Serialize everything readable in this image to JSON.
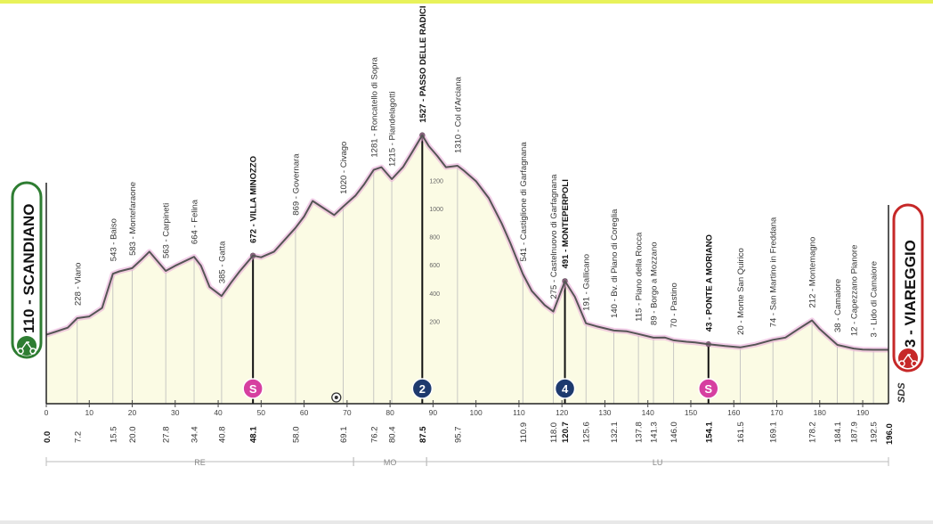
{
  "start": {
    "name": "110 - SCANDIANO",
    "altitude": 110,
    "km": 0.0,
    "km_label": "0.0"
  },
  "finish": {
    "name": "3 - VIAREGGIO",
    "altitude": 3,
    "km": 196.0,
    "km_label": "196.0"
  },
  "brand": "SDS",
  "colors": {
    "accent": "#2e7d32",
    "climb": "#d63fa0",
    "finish_tag": "#c62828",
    "profile_line": "#555555",
    "profile_fill": "#fbfbe4",
    "climb_badge": "#1e3a6e"
  },
  "chart_data": {
    "type": "area",
    "xlim": [
      0,
      196
    ],
    "ylim": [
      0,
      1600
    ],
    "x_ticks": [
      0,
      10,
      20,
      30,
      40,
      50,
      60,
      70,
      80,
      90,
      100,
      110,
      120,
      130,
      140,
      150,
      160,
      170,
      180,
      190
    ],
    "y_ticks": [
      200,
      400,
      600,
      800,
      1000,
      1200
    ],
    "profile": [
      [
        0,
        110
      ],
      [
        2,
        130
      ],
      [
        5,
        160
      ],
      [
        7.2,
        228
      ],
      [
        10,
        240
      ],
      [
        13,
        300
      ],
      [
        15.5,
        543
      ],
      [
        17,
        560
      ],
      [
        20,
        583
      ],
      [
        22,
        640
      ],
      [
        24,
        700
      ],
      [
        27.8,
        563
      ],
      [
        30,
        600
      ],
      [
        34.4,
        664
      ],
      [
        36,
        600
      ],
      [
        38,
        450
      ],
      [
        40.8,
        385
      ],
      [
        43,
        480
      ],
      [
        45,
        560
      ],
      [
        48.1,
        672
      ],
      [
        50,
        660
      ],
      [
        53,
        700
      ],
      [
        58,
        869
      ],
      [
        60,
        950
      ],
      [
        62,
        1060
      ],
      [
        65,
        1000
      ],
      [
        67,
        960
      ],
      [
        69.1,
        1020
      ],
      [
        72,
        1100
      ],
      [
        74,
        1180
      ],
      [
        76.2,
        1281
      ],
      [
        78,
        1300
      ],
      [
        80.4,
        1215
      ],
      [
        83,
        1300
      ],
      [
        85,
        1400
      ],
      [
        87.5,
        1527
      ],
      [
        89,
        1450
      ],
      [
        91,
        1380
      ],
      [
        93,
        1300
      ],
      [
        95.7,
        1310
      ],
      [
        97,
        1280
      ],
      [
        100,
        1200
      ],
      [
        103,
        1080
      ],
      [
        106,
        900
      ],
      [
        108,
        760
      ],
      [
        110.9,
        541
      ],
      [
        113,
        420
      ],
      [
        116,
        320
      ],
      [
        118,
        275
      ],
      [
        120.7,
        491
      ],
      [
        123,
        380
      ],
      [
        125.6,
        191
      ],
      [
        128,
        170
      ],
      [
        132.1,
        140
      ],
      [
        135,
        135
      ],
      [
        137.8,
        115
      ],
      [
        141.3,
        89
      ],
      [
        144,
        90
      ],
      [
        146,
        70
      ],
      [
        149,
        60
      ],
      [
        151,
        55
      ],
      [
        154.1,
        43
      ],
      [
        158,
        30
      ],
      [
        161.5,
        20
      ],
      [
        165,
        40
      ],
      [
        169.1,
        74
      ],
      [
        172,
        90
      ],
      [
        175,
        150
      ],
      [
        178.2,
        212
      ],
      [
        180,
        150
      ],
      [
        184.1,
        38
      ],
      [
        187.9,
        12
      ],
      [
        190,
        5
      ],
      [
        192.5,
        3
      ],
      [
        196,
        3
      ]
    ],
    "points": [
      {
        "km": 7.2,
        "km_label": "7.2",
        "label": "228 - Viano"
      },
      {
        "km": 15.5,
        "km_label": "15.5",
        "label": "543 - Baiso"
      },
      {
        "km": 20.0,
        "km_label": "20.0",
        "label": "583 - Montefaraone"
      },
      {
        "km": 27.8,
        "km_label": "27.8",
        "label": "563 - Carpineti"
      },
      {
        "km": 34.4,
        "km_label": "34.4",
        "label": "664 - Felina"
      },
      {
        "km": 40.8,
        "km_label": "40.8",
        "label": "385 - Gatta"
      },
      {
        "km": 48.1,
        "km_label": "48.1",
        "label": "672 - VILLA MINOZZO",
        "bold": true,
        "sprint": true
      },
      {
        "km": 58.0,
        "km_label": "58.0",
        "label": "869 - Governara"
      },
      {
        "km": 69.1,
        "km_label": "69.1",
        "label": "1020 - Civago"
      },
      {
        "km": 76.2,
        "km_label": "76.2",
        "label": "1281 - Roncatello di Sopra"
      },
      {
        "km": 80.4,
        "km_label": "80.4",
        "label": "1215 - Piandelagotti"
      },
      {
        "km": 87.5,
        "km_label": "87.5",
        "label": "1527 - PASSO DELLE RADICI",
        "bold": true,
        "climb": "2"
      },
      {
        "km": 95.7,
        "km_label": "95.7",
        "label": "1310 - Col d'Arciana"
      },
      {
        "km": 110.9,
        "km_label": "110.9",
        "label": "541 - Castiglione di Garfagnana"
      },
      {
        "km": 118.0,
        "km_label": "118.0",
        "label": "275 - Castelnuovo di Garfagnana"
      },
      {
        "km": 120.7,
        "km_label": "120.7",
        "label": "491 - MONTEPERPOLI",
        "bold": true,
        "climb": "4"
      },
      {
        "km": 125.6,
        "km_label": "125.6",
        "label": "191 - Gallicano"
      },
      {
        "km": 132.1,
        "km_label": "132.1",
        "label": "140 - Bv. di Piano di Coreglia"
      },
      {
        "km": 137.8,
        "km_label": "137.8",
        "label": "115 - Piano della Rocca"
      },
      {
        "km": 141.3,
        "km_label": "141.3",
        "label": "89 - Borgo a Mozzano"
      },
      {
        "km": 146.0,
        "km_label": "146.0",
        "label": "70 - Pastino"
      },
      {
        "km": 154.1,
        "km_label": "154.1",
        "label": "43 - PONTE A MORIANO",
        "bold": true,
        "sprint": true
      },
      {
        "km": 161.5,
        "km_label": "161.5",
        "label": "20 - Monte San Quirico"
      },
      {
        "km": 169.1,
        "km_label": "169.1",
        "label": "74 - San Martino in Freddana"
      },
      {
        "km": 178.2,
        "km_label": "178.2",
        "label": "212 - Montemagno"
      },
      {
        "km": 184.1,
        "km_label": "184.1",
        "label": "38 - Camaiore"
      },
      {
        "km": 187.9,
        "km_label": "187.9",
        "label": "12 - Capezzano Pianore"
      },
      {
        "km": 192.5,
        "km_label": "192.5",
        "label": "3 - Lido di Camaiore"
      }
    ],
    "badges": [
      {
        "km": 48.1,
        "text": "S",
        "type": "sprint"
      },
      {
        "km": 87.5,
        "text": "2",
        "type": "climb"
      },
      {
        "km": 120.7,
        "text": "4",
        "type": "climb"
      },
      {
        "km": 154.1,
        "text": "S",
        "type": "sprint"
      }
    ],
    "feed_zone_km": 67.5,
    "regions": [
      {
        "label": "RE",
        "from": 0,
        "to": 71.5
      },
      {
        "label": "MO",
        "from": 71.5,
        "to": 88.5
      },
      {
        "label": "LU",
        "from": 88.5,
        "to": 196
      }
    ]
  }
}
